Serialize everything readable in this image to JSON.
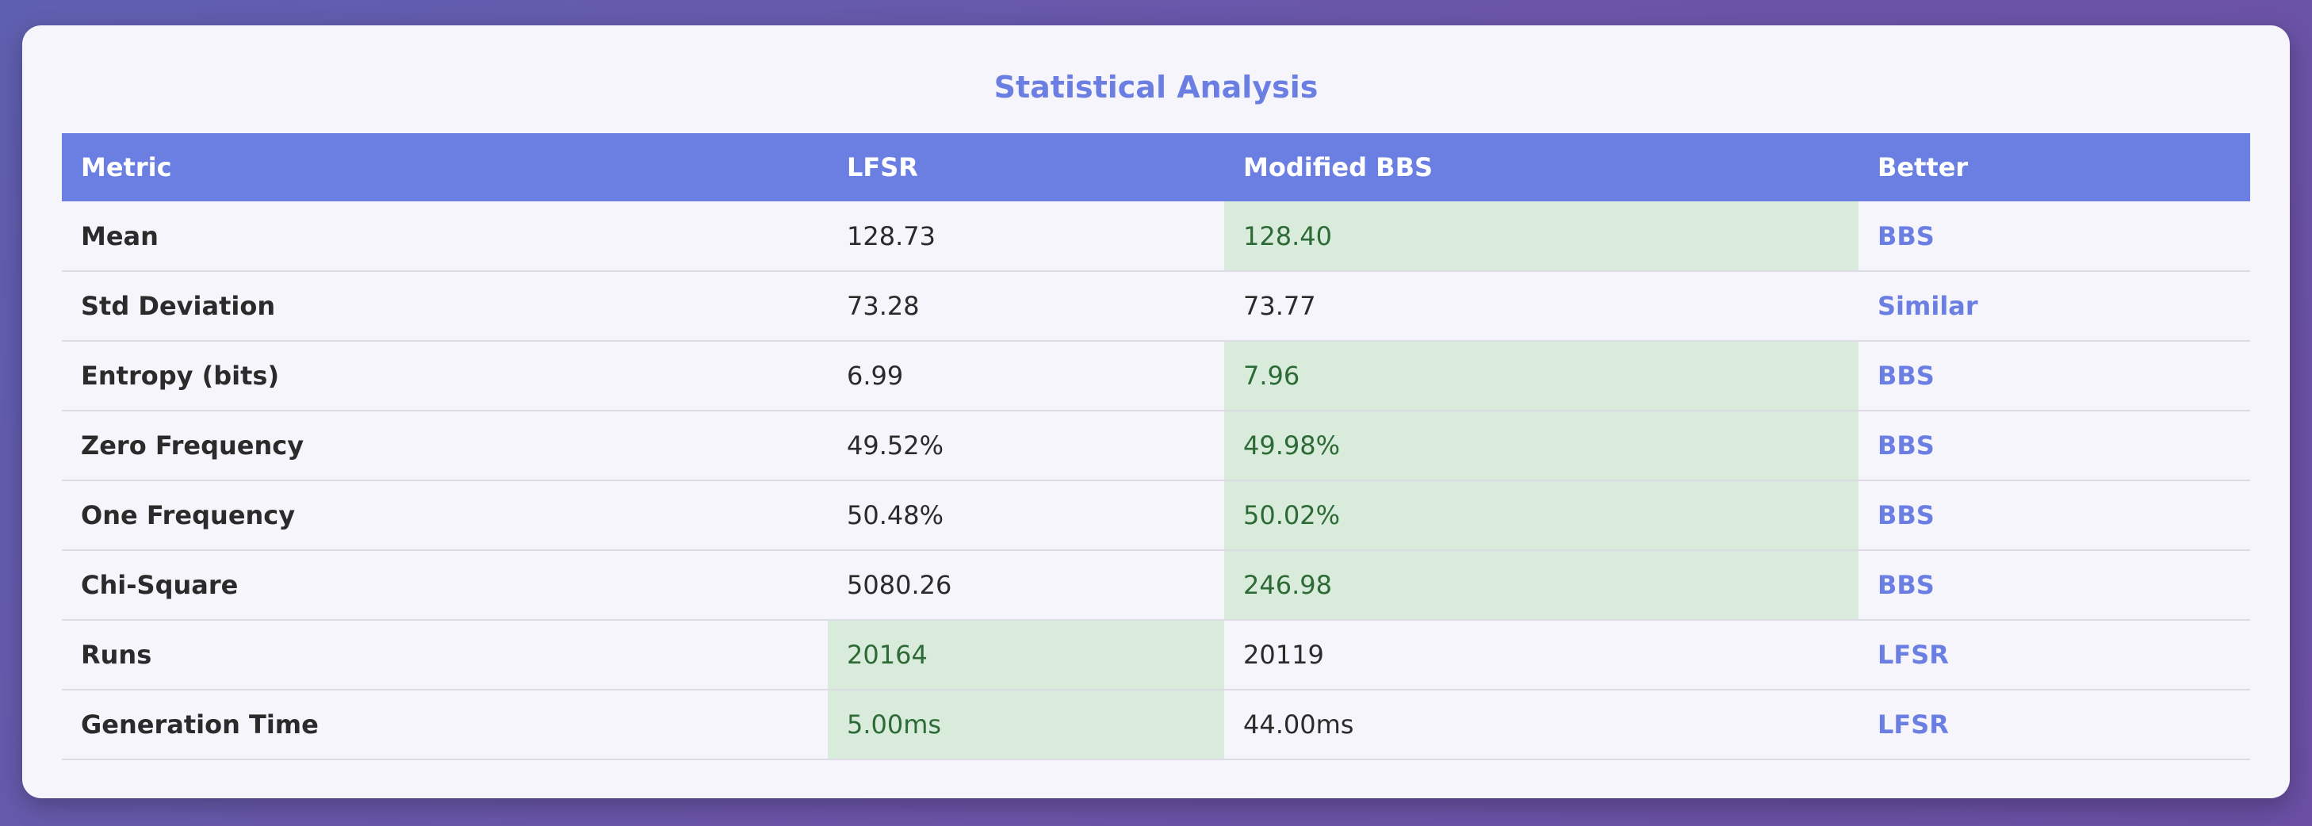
{
  "title": "Statistical Analysis",
  "headers": [
    "Metric",
    "LFSR",
    "Modified BBS",
    "Better"
  ],
  "rows": [
    {
      "metric": "Mean",
      "lfsr": "128.73",
      "bbs": "128.40",
      "better": "BBS"
    },
    {
      "metric": "Std Deviation",
      "lfsr": "73.28",
      "bbs": "73.77",
      "better": "Similar"
    },
    {
      "metric": "Entropy (bits)",
      "lfsr": "6.99",
      "bbs": "7.96",
      "better": "BBS"
    },
    {
      "metric": "Zero Frequency",
      "lfsr": "49.52%",
      "bbs": "49.98%",
      "better": "BBS"
    },
    {
      "metric": "One Frequency",
      "lfsr": "50.48%",
      "bbs": "50.02%",
      "better": "BBS"
    },
    {
      "metric": "Chi-Square",
      "lfsr": "5080.26",
      "bbs": "246.98",
      "better": "BBS"
    },
    {
      "metric": "Runs",
      "lfsr": "20164",
      "bbs": "20119",
      "better": "LFSR"
    },
    {
      "metric": "Generation Time",
      "lfsr": "5.00ms",
      "bbs": "44.00ms",
      "better": "LFSR"
    }
  ],
  "colors": {
    "accent": "#6b7fe3",
    "winner_bg": "#d9ecdb",
    "winner_text": "#2d6a37",
    "card_bg": "#f6f5fb"
  }
}
